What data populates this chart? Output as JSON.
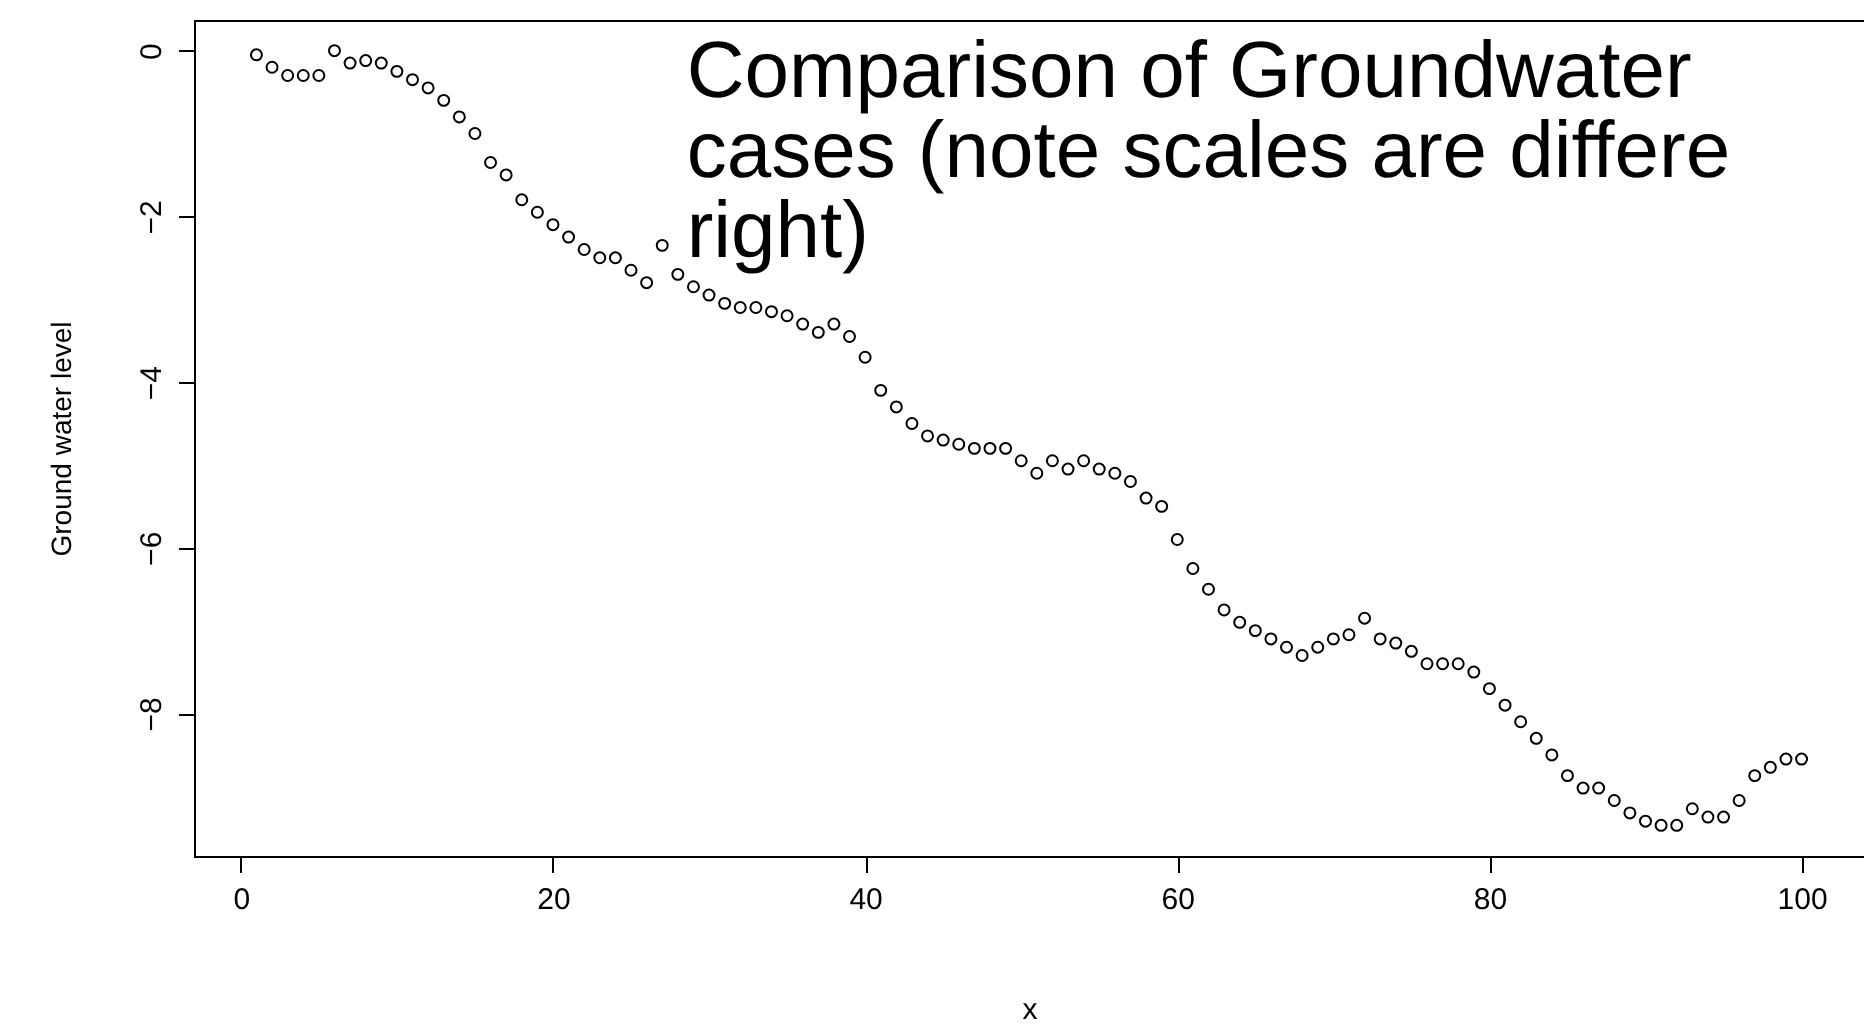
{
  "chart_data": {
    "type": "scatter",
    "xlabel": "x",
    "ylabel": "Ground water level",
    "annotations": [
      "Comparison of Groundwater\ncases (note scales are differe\nright)"
    ],
    "x": [
      1,
      2,
      3,
      4,
      5,
      6,
      7,
      8,
      9,
      10,
      11,
      12,
      13,
      14,
      15,
      16,
      17,
      18,
      19,
      20,
      21,
      22,
      23,
      24,
      25,
      26,
      27,
      28,
      29,
      30,
      31,
      32,
      33,
      34,
      35,
      36,
      37,
      38,
      39,
      40,
      41,
      42,
      43,
      44,
      45,
      46,
      47,
      48,
      49,
      50,
      51,
      52,
      53,
      54,
      55,
      56,
      57,
      58,
      59,
      60,
      61,
      62,
      63,
      64,
      65,
      66,
      67,
      68,
      69,
      70,
      71,
      72,
      73,
      74,
      75,
      76,
      77,
      78,
      79,
      80,
      81,
      82,
      83,
      84,
      85,
      86,
      87,
      88,
      89,
      90,
      91,
      92,
      93,
      94,
      95,
      96,
      97,
      98,
      99,
      100
    ],
    "values": [
      -0.05,
      -0.2,
      -0.3,
      -0.3,
      -0.3,
      0,
      -0.15,
      -0.12,
      -0.15,
      -0.25,
      -0.35,
      -0.45,
      -0.6,
      -0.8,
      -1,
      -1.35,
      -1.5,
      -1.8,
      -1.95,
      -2.1,
      -2.25,
      -2.4,
      -2.5,
      -2.5,
      -2.65,
      -2.8,
      -2.35,
      -2.7,
      -2.85,
      -2.95,
      -3.05,
      -3.1,
      -3.1,
      -3.15,
      -3.2,
      -3.3,
      -3.4,
      -3.3,
      -3.45,
      -3.7,
      -4.1,
      -4.3,
      -4.5,
      -4.65,
      -4.7,
      -4.75,
      -4.8,
      -4.8,
      -4.8,
      -4.95,
      -5.1,
      -4.95,
      -5.05,
      -4.95,
      -5.05,
      -5.1,
      -5.2,
      -5.4,
      -5.5,
      -5.9,
      -6.25,
      -6.5,
      -6.75,
      -6.9,
      -7,
      -7.1,
      -7.2,
      -7.3,
      -7.2,
      -7.1,
      -7.05,
      -6.85,
      -7.1,
      -7.15,
      -7.25,
      -7.4,
      -7.4,
      -7.4,
      -7.5,
      -7.7,
      -7.9,
      -8.1,
      -8.3,
      -8.5,
      -8.75,
      -8.9,
      -8.9,
      -9.05,
      -9.2,
      -9.3,
      -9.35,
      -9.35,
      -9.15,
      -9.25,
      -9.25,
      -9.05,
      -8.75,
      -8.65,
      -8.55,
      -8.55
    ],
    "color": "#000000",
    "marker": "circle",
    "xlim": [
      -3,
      104
    ],
    "ylim": [
      -9.72,
      0.37
    ],
    "xticks": [
      0,
      20,
      40,
      60,
      80,
      100
    ],
    "yticks": [
      0,
      -2,
      -4,
      -6,
      -8
    ]
  }
}
